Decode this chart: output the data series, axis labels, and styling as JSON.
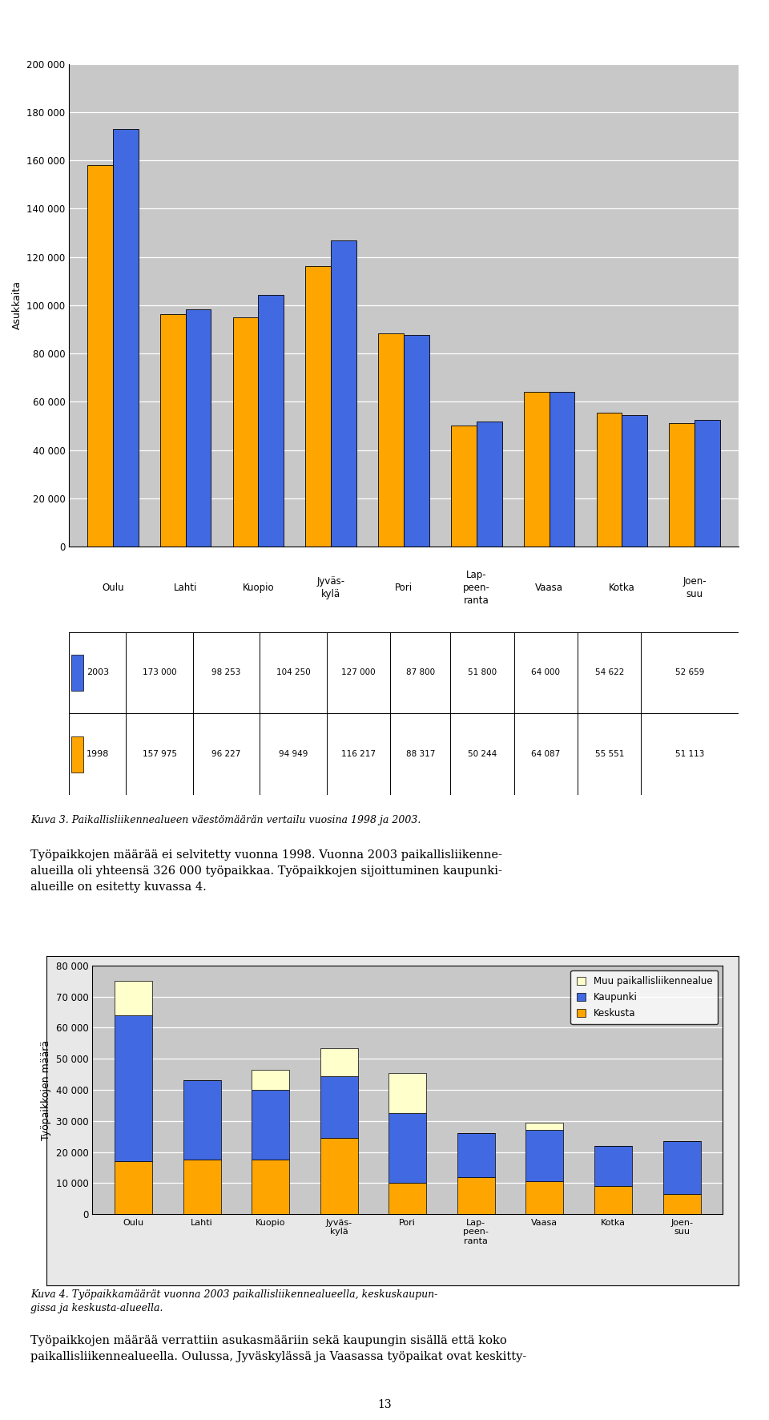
{
  "chart1": {
    "values_1998": [
      157975,
      96227,
      94949,
      116217,
      88317,
      50244,
      64087,
      55551,
      51113
    ],
    "values_2003": [
      173000,
      98253,
      104250,
      127000,
      87800,
      51800,
      64000,
      54622,
      52659
    ],
    "color_1998": "#FFA500",
    "color_2003": "#4169E1",
    "ylabel": "Asukkaita",
    "ylim": [
      0,
      200000
    ],
    "yticks": [
      0,
      20000,
      40000,
      60000,
      80000,
      100000,
      120000,
      140000,
      160000,
      180000,
      200000
    ],
    "legend_1998": "1998",
    "legend_2003": "2003",
    "city_names": [
      "Oulu",
      "Lahti",
      "Kuopio",
      "Jyväs-\nkylä",
      "Pori",
      "Lap-\npeen-\nranta",
      "Vaasa",
      "Kotka",
      "Joen-\nsuu"
    ],
    "table_row1": [
      "157 975",
      "96 227",
      "94 949",
      "116 217",
      "88 317",
      "50 244",
      "64 087",
      "55 551",
      "51 113"
    ],
    "table_row2": [
      "173 000",
      "98 253",
      "104 250",
      "127 000",
      "87 800",
      "51 800",
      "64 000",
      "54 622",
      "52 659"
    ],
    "caption": "Kuva 3. Paikallisliikennealueen väestömäärän vertailu vuosina 1998 ja 2003."
  },
  "text_between": "Työpaikkojen määrää ei selvitetty vuonna 1998. Vuonna 2003 paikallisliikenne-\nalueilla oli yhteensä 326 000 työpaikkaa. Työpaikkojen sijoittuminen kaupunki-\nalueille on esitetty kuvassa 4.",
  "chart2": {
    "city_names": [
      "Oulu",
      "Lahti",
      "Kuopio",
      "Jyväs-\nkylä",
      "Pori",
      "Lap-\npeen-\nranta",
      "Vaasa",
      "Kotka",
      "Joen-\nsuu"
    ],
    "keskusta": [
      17000,
      17500,
      17500,
      24500,
      10000,
      12000,
      10500,
      9000,
      6500
    ],
    "kaupunki": [
      47000,
      25500,
      22500,
      20000,
      22500,
      14000,
      16500,
      13000,
      17000
    ],
    "muu": [
      11000,
      0,
      6500,
      9000,
      13000,
      0,
      2500,
      0,
      0
    ],
    "color_keskusta": "#FFA500",
    "color_kaupunki": "#4169E1",
    "color_muu": "#FFFFCC",
    "ylabel": "Työpaikkojen määrä",
    "ylim": [
      0,
      80000
    ],
    "yticks": [
      0,
      10000,
      20000,
      30000,
      40000,
      50000,
      60000,
      70000,
      80000
    ],
    "legend_muu": "Muu paikallisliikennealue",
    "legend_kaupunki": "Kaupunki",
    "legend_keskusta": "Keskusta",
    "caption": "Kuva 4. Työpaikkamäärät vuonna 2003 paikallisliikennealueella, keskuskaupun-\ngissa ja keskusta-alueella."
  },
  "text_after": "Työpaikkojen määrää verrattiin asukasmääriin sekä kaupungin sisällä että koko\npaikallisliikennealueella. Oulussa, Jyväskylässä ja Vaasassa työpaikat ovat keskitty-\nneet kaupungin rajojen sisäpuolelle, kun taas Porissa on suhteessa enemmän\ntyöpaikkoja kaupungin rajojen ulkopuolella asukasmäärään verrattuna (kuva 5).\nLappeenrannassa taas kaupunkialueen työpaikkojen määrä suhteessa asukasmää-\nrään on pienempi kuin koko paikallisliikennealueella siitä syystä, että paikallislii-",
  "page_number": "13",
  "chart_bg": "#C8C8C8",
  "outer_bg": "#E8E8E8"
}
